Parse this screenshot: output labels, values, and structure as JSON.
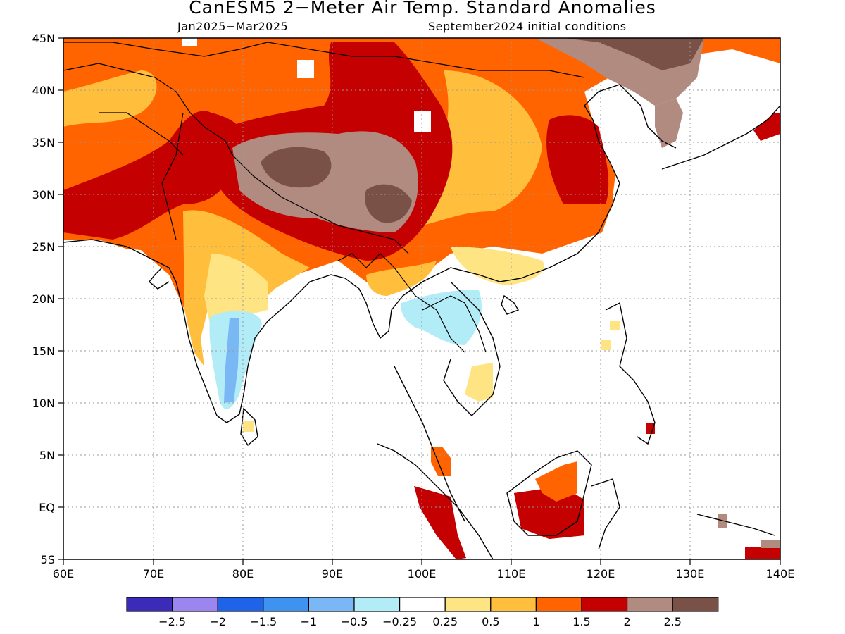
{
  "title": "CanESM5 2−Meter Air Temp. Standard Anomalies",
  "subtitle_left": "Jan2025−Mar2025",
  "subtitle_right": "September2024 initial conditions",
  "map": {
    "lon_ticks": [
      "60E",
      "70E",
      "80E",
      "90E",
      "100E",
      "110E",
      "120E",
      "130E",
      "140E"
    ],
    "lat_ticks": [
      "45N",
      "40N",
      "35N",
      "30N",
      "25N",
      "20N",
      "15N",
      "10N",
      "5N",
      "EQ",
      "5S"
    ],
    "lon_range": [
      60,
      140
    ],
    "lat_range": [
      -5,
      45
    ],
    "gridlines": "dotted",
    "field": "2-meter air temperature standard anomaly"
  },
  "colorbar": {
    "colors": [
      "#3c2bb8",
      "#9b86ef",
      "#1f64e8",
      "#3f93f0",
      "#7ab8f5",
      "#b2ecf7",
      "#ffffff",
      "#ffe484",
      "#ffbf3c",
      "#ff6400",
      "#c40000",
      "#b18a80",
      "#7a5146"
    ],
    "labels": [
      "−2.5",
      "−2",
      "−1.5",
      "−1",
      "−0.5",
      "−0.25",
      "0.25",
      "0.5",
      "1",
      "1.5",
      "2",
      "2.5"
    ]
  }
}
